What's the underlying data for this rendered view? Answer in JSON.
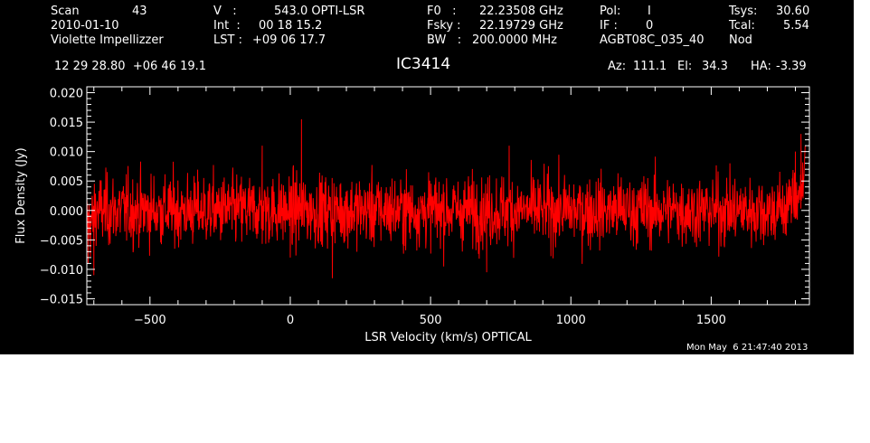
{
  "header": {
    "scan_label": "Scan",
    "scan_value": "43",
    "date": "2010-01-10",
    "observer": "Violette Impellizzer",
    "v_label": "V   :",
    "v_value": "543.0 OPTI-LSR",
    "int_label": "Int  :",
    "int_value": "00 18 15.2",
    "lst_label": "LST :",
    "lst_value": "+09 06 17.7",
    "f0_label": "F0   :",
    "f0_value": "22.23508 GHz",
    "fsky_label": "Fsky :",
    "fsky_value": "22.19729 GHz",
    "bw_label": "BW   :",
    "bw_value": "200.0000 MHz",
    "pol_label": "Pol:",
    "pol_value": "I",
    "if_label": "IF :",
    "if_value": "0",
    "project": "AGBT08C_035_40",
    "tsys_label": "Tsys:",
    "tsys_value": "30.60",
    "tcal_label": "Tcal:",
    "tcal_value": "5.54",
    "mode": "Nod",
    "coords": "12 29 28.80  +06 46 19.1",
    "source": "IC3414",
    "az_label": "Az:",
    "az_value": "111.1",
    "el_label": "El:",
    "el_value": "34.3",
    "ha_label": "HA:",
    "ha_value": "-3.39"
  },
  "timestamp": "Mon May  6 21:47:40 2013",
  "colors": {
    "background": "#000000",
    "axes": "#ffffff",
    "series": "#ff0000"
  },
  "chart_data": {
    "type": "line",
    "title": "IC3414",
    "xlabel": "LSR Velocity (km/s) OPTICAL",
    "ylabel": "Flux Density (Jy)",
    "xlim": [
      -725,
      1850
    ],
    "ylim": [
      -0.016,
      0.021
    ],
    "xticks": [
      -500,
      0,
      500,
      1000,
      1500
    ],
    "xtick_labels": [
      "−500",
      "0",
      "500",
      "1000",
      "1500"
    ],
    "yticks": [
      0.02,
      0.015,
      0.01,
      0.005,
      0.0,
      -0.005,
      -0.01,
      -0.015
    ],
    "ytick_labels": [
      "0.020",
      "0.015",
      "0.010",
      "0.005",
      "0.000",
      "−0.005",
      "−0.010",
      "−0.015"
    ],
    "grid": false,
    "legend": "none",
    "series": [
      {
        "x_range": [
          -725,
          1830
        ],
        "n_points": 2000,
        "noise_rms": 0.003,
        "baseline": 0.0,
        "peak_points": [
          [
            -720,
            -0.009
          ],
          [
            -700,
            -0.011
          ],
          [
            40,
            0.0155
          ],
          [
            0,
            -0.008
          ],
          [
            -100,
            0.011
          ],
          [
            150,
            -0.0115
          ],
          [
            780,
            0.011
          ],
          [
            700,
            -0.0105
          ],
          [
            1820,
            0.013
          ],
          [
            1800,
            0.01
          ],
          [
            1835,
            0.011
          ]
        ]
      }
    ]
  }
}
